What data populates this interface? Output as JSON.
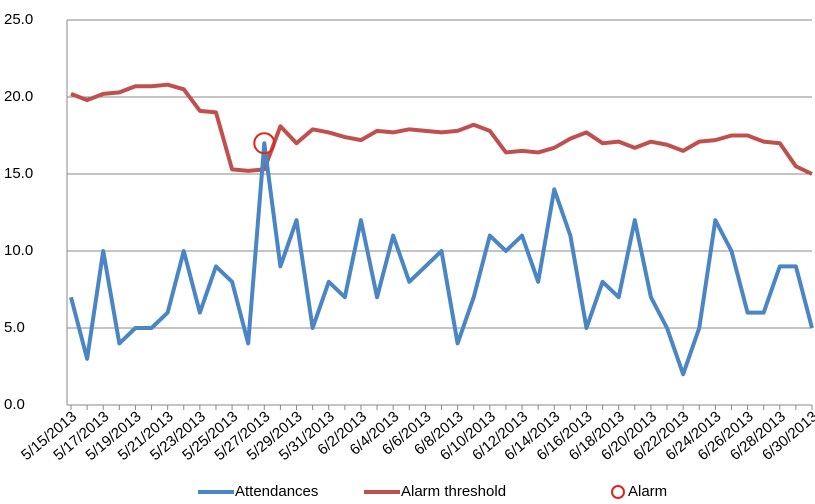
{
  "chart_data": {
    "type": "line",
    "categories": [
      "5/15/2013",
      null,
      "5/17/2013",
      null,
      "5/19/2013",
      null,
      "5/21/2013",
      null,
      "5/23/2013",
      null,
      "5/25/2013",
      null,
      "5/27/2013",
      null,
      "5/29/2013",
      null,
      "5/31/2013",
      null,
      "6/2/2013",
      null,
      "6/4/2013",
      null,
      "6/6/2013",
      null,
      "6/8/2013",
      null,
      "6/10/2013",
      null,
      "6/12/2013",
      null,
      "6/14/2013",
      null,
      "6/16/2013",
      null,
      "6/18/2013",
      null,
      "6/20/2013",
      null,
      "6/22/2013",
      null,
      "6/24/2013",
      null,
      "6/26/2013",
      null,
      "6/28/2013",
      null,
      "6/30/2013"
    ],
    "series": [
      {
        "name": "Attendances",
        "color": "#4a86c5",
        "mode": "line",
        "values": [
          7,
          3,
          10,
          4,
          5,
          5,
          6,
          10,
          6,
          9,
          8,
          4,
          17,
          9,
          12,
          5,
          8,
          7,
          12,
          7,
          11,
          8,
          9,
          10,
          4,
          7,
          11,
          10,
          11,
          8,
          14,
          11,
          5,
          8,
          7,
          12,
          7,
          5,
          2,
          5,
          12,
          10,
          6,
          6,
          9,
          9,
          5
        ]
      },
      {
        "name": "Alarm threshold",
        "color": "#c0504d",
        "mode": "line",
        "values": [
          20.2,
          19.8,
          20.2,
          20.3,
          20.7,
          20.7,
          20.8,
          20.5,
          19.1,
          19.0,
          15.3,
          15.2,
          15.3,
          18.1,
          17.0,
          17.9,
          17.7,
          17.4,
          17.2,
          17.8,
          17.7,
          17.9,
          17.8,
          17.7,
          17.8,
          18.2,
          17.8,
          16.4,
          16.5,
          16.4,
          16.7,
          17.3,
          17.7,
          17.0,
          17.1,
          16.7,
          17.1,
          16.9,
          16.5,
          17.1,
          17.2,
          17.5,
          17.5,
          17.1,
          17.0,
          15.5,
          15.0
        ]
      },
      {
        "name": "Alarm",
        "color": "#e0261b",
        "mode": "markers",
        "values": [
          null,
          null,
          null,
          null,
          null,
          null,
          null,
          null,
          null,
          null,
          null,
          null,
          17,
          null,
          null,
          null,
          null,
          null,
          null,
          null,
          null,
          null,
          null,
          null,
          null,
          null,
          null,
          null,
          null,
          null,
          null,
          null,
          null,
          null,
          null,
          null,
          null,
          null,
          null,
          null,
          null,
          null,
          null,
          null,
          null,
          null,
          null
        ]
      }
    ],
    "ylim": [
      0,
      25
    ],
    "yticks": [
      {
        "value": 0,
        "label": "0.0"
      },
      {
        "value": 5,
        "label": "5.0"
      },
      {
        "value": 10,
        "label": "10.0"
      },
      {
        "value": 15,
        "label": "15.0"
      },
      {
        "value": 20,
        "label": "20.0"
      },
      {
        "value": 25,
        "label": "25.0"
      }
    ],
    "grid": true
  }
}
